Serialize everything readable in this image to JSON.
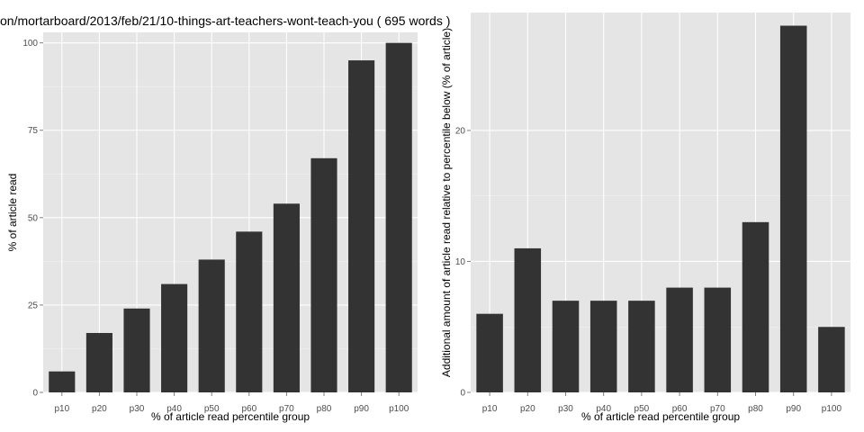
{
  "page_title": "on/mortarboard/2013/feb/21/10-things-art-teachers-wont-teach-you ( 695 words )",
  "chart_data": [
    {
      "type": "bar",
      "title": "",
      "xlabel": "% of article read percentile group",
      "ylabel": "% of article read",
      "categories": [
        "p10",
        "p20",
        "p30",
        "p40",
        "p50",
        "p60",
        "p70",
        "p80",
        "p90",
        "p100"
      ],
      "values": [
        6,
        17,
        24,
        31,
        38,
        46,
        54,
        67,
        95,
        100
      ],
      "ylim": [
        0,
        103
      ],
      "yticks": [
        0,
        25,
        50,
        75,
        100
      ],
      "grid": true,
      "bar_color": "#333333",
      "panel_color": "#e5e5e5",
      "grid_color": "#ffffff"
    },
    {
      "type": "bar",
      "title": "",
      "xlabel": "% of article read percentile group",
      "ylabel": "Additional amount of article read relative to percentile below (% of article)",
      "categories": [
        "p10",
        "p20",
        "p30",
        "p40",
        "p50",
        "p60",
        "p70",
        "p80",
        "p90",
        "p100"
      ],
      "values": [
        6,
        11,
        7,
        7,
        7,
        8,
        8,
        13,
        28,
        5
      ],
      "ylim": [
        0,
        29
      ],
      "yticks": [
        0,
        10,
        20
      ],
      "grid": true,
      "bar_color": "#333333",
      "panel_color": "#e5e5e5",
      "grid_color": "#ffffff"
    }
  ]
}
